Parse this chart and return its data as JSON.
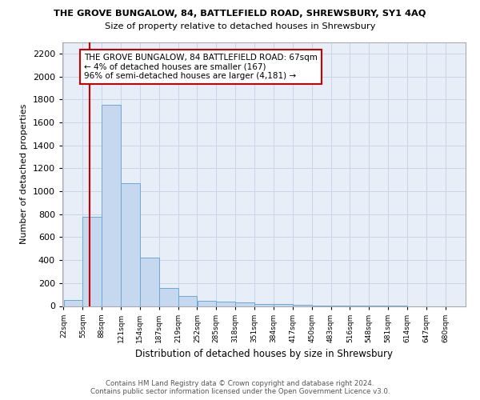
{
  "title": "THE GROVE BUNGALOW, 84, BATTLEFIELD ROAD, SHREWSBURY, SY1 4AQ",
  "subtitle": "Size of property relative to detached houses in Shrewsbury",
  "xlabel": "Distribution of detached houses by size in Shrewsbury",
  "ylabel": "Number of detached properties",
  "footer_line1": "Contains HM Land Registry data © Crown copyright and database right 2024.",
  "footer_line2": "Contains public sector information licensed under the Open Government Licence v3.0.",
  "bin_labels": [
    "22sqm",
    "55sqm",
    "88sqm",
    "121sqm",
    "154sqm",
    "187sqm",
    "219sqm",
    "252sqm",
    "285sqm",
    "318sqm",
    "351sqm",
    "384sqm",
    "417sqm",
    "450sqm",
    "483sqm",
    "516sqm",
    "548sqm",
    "581sqm",
    "614sqm",
    "647sqm",
    "680sqm"
  ],
  "bar_values": [
    55,
    775,
    1750,
    1070,
    420,
    155,
    85,
    45,
    35,
    30,
    20,
    15,
    10,
    5,
    3,
    2,
    1,
    1,
    0,
    0,
    0
  ],
  "ylim": [
    0,
    2300
  ],
  "yticks": [
    0,
    200,
    400,
    600,
    800,
    1000,
    1200,
    1400,
    1600,
    1800,
    2000,
    2200
  ],
  "property_value": 67,
  "bar_color": "#c5d8f0",
  "bar_edge_color": "#6aaad4",
  "red_line_color": "#cc0000",
  "annotation_text": "THE GROVE BUNGALOW, 84 BATTLEFIELD ROAD: 67sqm\n← 4% of detached houses are smaller (167)\n96% of semi-detached houses are larger (4,181) →",
  "annotation_box_edge": "#cc0000",
  "plot_bg_color": "#e8eef8",
  "bg_color": "#ffffff",
  "grid_color": "#c8d4e8"
}
